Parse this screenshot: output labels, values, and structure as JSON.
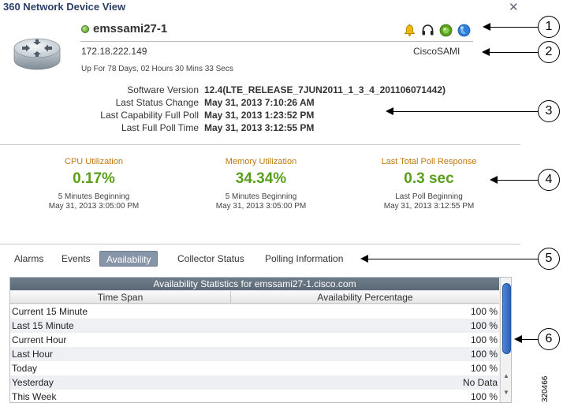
{
  "window": {
    "title": "360 Network Device View",
    "close_glyph": "✕"
  },
  "device": {
    "name": "emssami27-1",
    "ip": "172.18.222.149",
    "type": "CiscoSAMI",
    "uptime": "Up For 78 Days, 02 Hours 30 Mins 33 Secs",
    "status_color": "#5aa020",
    "header_icons": [
      "alarm-bell-icon",
      "headset-icon",
      "reachability-icon",
      "globe-icon"
    ]
  },
  "details": [
    {
      "label": "Software Version",
      "value": "12.4(LTE_RELEASE_7JUN2011_1_3_4_201106071442)"
    },
    {
      "label": "Last Status Change",
      "value": "May 31, 2013 7:10:26 AM"
    },
    {
      "label": "Last Capability Full Poll",
      "value": "May 31, 2013 1:23:52 PM"
    },
    {
      "label": "Last Full Poll Time",
      "value": "May 31, 2013 3:12:55 PM"
    }
  ],
  "metrics": [
    {
      "title": "CPU Utilization",
      "value": "0.17%",
      "sub1": "5 Minutes Beginning",
      "sub2": "May 31, 2013 3:05:00 PM"
    },
    {
      "title": "Memory Utilization",
      "value": "34.34%",
      "sub1": "5 Minutes Beginning",
      "sub2": "May 31, 2013 3:05:00 PM"
    },
    {
      "title": "Last Total Poll Response",
      "value": "0.3 sec",
      "sub1": "Last Poll Beginning",
      "sub2": "May 31, 2013 3:12:55 PM"
    }
  ],
  "tabs": [
    {
      "label": "Alarms",
      "active": false
    },
    {
      "label": "Events",
      "active": false
    },
    {
      "label": "Availability",
      "active": true
    },
    {
      "label": "Collector Status",
      "active": false
    },
    {
      "label": "Polling Information",
      "active": false
    }
  ],
  "availability": {
    "caption": "Availability Statistics for emssami27-1.cisco.com",
    "columns": [
      "Time Span",
      "Availability Percentage"
    ],
    "rows": [
      {
        "span": "Current 15 Minute",
        "pct": "100 %"
      },
      {
        "span": "Last 15 Minute",
        "pct": "100 %"
      },
      {
        "span": "Current Hour",
        "pct": "100 %"
      },
      {
        "span": "Last Hour",
        "pct": "100 %"
      },
      {
        "span": "Today",
        "pct": "100 %"
      },
      {
        "span": "Yesterday",
        "pct": "No Data"
      },
      {
        "span": "This Week",
        "pct": "100 %"
      }
    ]
  },
  "callouts": [
    "1",
    "2",
    "3",
    "4",
    "5",
    "6"
  ],
  "figure_id": "320466",
  "colors": {
    "title": "#2a3f6a",
    "metric_title": "#c07a10",
    "metric_value": "#5a9f1c",
    "active_tab": "#8696a8",
    "scroll_thumb": "#3a72c8"
  }
}
